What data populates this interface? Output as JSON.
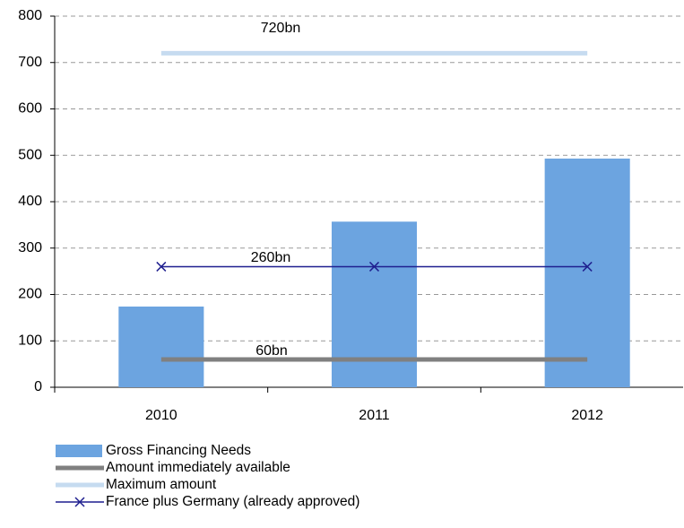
{
  "chart_data": {
    "type": "bar",
    "categories": [
      "2010",
      "2011",
      "2012"
    ],
    "series": [
      {
        "name": "Gross Financing Needs",
        "type": "bar",
        "color": "#6ca4e0",
        "values": [
          174,
          357,
          493
        ]
      },
      {
        "name": "Amount immediately available",
        "type": "line",
        "color": "#808080",
        "values": [
          60,
          60,
          60
        ]
      },
      {
        "name": "Maximum amount",
        "type": "line",
        "color": "#c6dbf0",
        "values": [
          720,
          720,
          720
        ]
      },
      {
        "name": "France plus Germany (already approved)",
        "type": "line-marker",
        "color": "#1f1f8f",
        "values": [
          260,
          260,
          260
        ]
      }
    ],
    "annotations": [
      "720bn",
      "260bn",
      "60bn"
    ],
    "ylim": [
      0,
      800
    ],
    "yticks": [
      0,
      100,
      200,
      300,
      400,
      500,
      600,
      700,
      800
    ],
    "grid": true
  }
}
